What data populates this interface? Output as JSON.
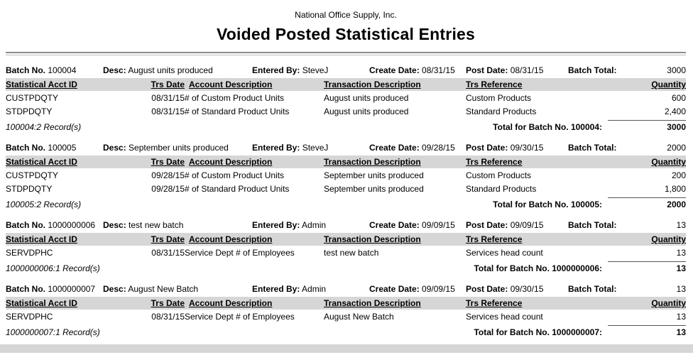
{
  "report": {
    "company": "National Office Supply, Inc.",
    "title": "Voided Posted Statistical Entries"
  },
  "labels": {
    "batch_no": "Batch No.",
    "desc": "Desc:",
    "entered_by": "Entered By:",
    "create_date": "Create Date:",
    "post_date": "Post Date:",
    "batch_total": "Batch Total:"
  },
  "columns": [
    "Statistical Acct ID",
    "Trs Date",
    "Account Description",
    "Transaction Description",
    "Trs Reference",
    "Quantity"
  ],
  "colors": {
    "header_bg": "#d6d6d6",
    "rule": "#8c8c8c"
  },
  "batches": [
    {
      "batch_no": "100004",
      "desc": "August units produced",
      "entered_by": "SteveJ",
      "create_date": "08/31/15",
      "post_date": "08/31/15",
      "batch_total": "3000",
      "rows": [
        {
          "acct_id": "CUSTPDQTY",
          "trs_date": "08/31/15",
          "account_desc": "# of Custom Product Units",
          "trans_desc": "August units produced",
          "trs_ref": "Custom Products",
          "qty": "600"
        },
        {
          "acct_id": "STDPDQTY",
          "trs_date": "08/31/15",
          "account_desc": "# of Standard Product Units",
          "trans_desc": "August units produced",
          "trs_ref": "Standard Products",
          "qty": "2,400"
        }
      ],
      "records": "100004:2 Record(s)",
      "total_label": "Total for Batch No. 100004:",
      "total": "3000"
    },
    {
      "batch_no": "100005",
      "desc": "September units produced",
      "entered_by": "SteveJ",
      "create_date": "09/28/15",
      "post_date": "09/30/15",
      "batch_total": "2000",
      "rows": [
        {
          "acct_id": "CUSTPDQTY",
          "trs_date": "09/28/15",
          "account_desc": "# of Custom Product Units",
          "trans_desc": "September units produced",
          "trs_ref": "Custom Products",
          "qty": "200"
        },
        {
          "acct_id": "STDPDQTY",
          "trs_date": "09/28/15",
          "account_desc": "# of Standard Product Units",
          "trans_desc": "September units produced",
          "trs_ref": "Standard Products",
          "qty": "1,800"
        }
      ],
      "records": "100005:2 Record(s)",
      "total_label": "Total for Batch No. 100005:",
      "total": "2000"
    },
    {
      "batch_no": "1000000006",
      "desc": "test new batch",
      "entered_by": "Admin",
      "create_date": "09/09/15",
      "post_date": "09/09/15",
      "batch_total": "13",
      "rows": [
        {
          "acct_id": "SERVDPHC",
          "trs_date": "08/31/15",
          "account_desc": "Service Dept # of Employees",
          "trans_desc": "test new batch",
          "trs_ref": "Services head count",
          "qty": "13"
        }
      ],
      "records": "1000000006:1 Record(s)",
      "total_label": "Total for Batch No. 1000000006:",
      "total": "13"
    },
    {
      "batch_no": "1000000007",
      "desc": "August New Batch",
      "entered_by": "Admin",
      "create_date": "09/09/15",
      "post_date": "09/30/15",
      "batch_total": "13",
      "rows": [
        {
          "acct_id": "SERVDPHC",
          "trs_date": "08/31/15",
          "account_desc": "Service Dept # of Employees",
          "trans_desc": "August New Batch",
          "trs_ref": "Services head count",
          "qty": "13"
        }
      ],
      "records": "1000000007:1 Record(s)",
      "total_label": "Total for Batch No. 1000000007:",
      "total": "13"
    }
  ]
}
